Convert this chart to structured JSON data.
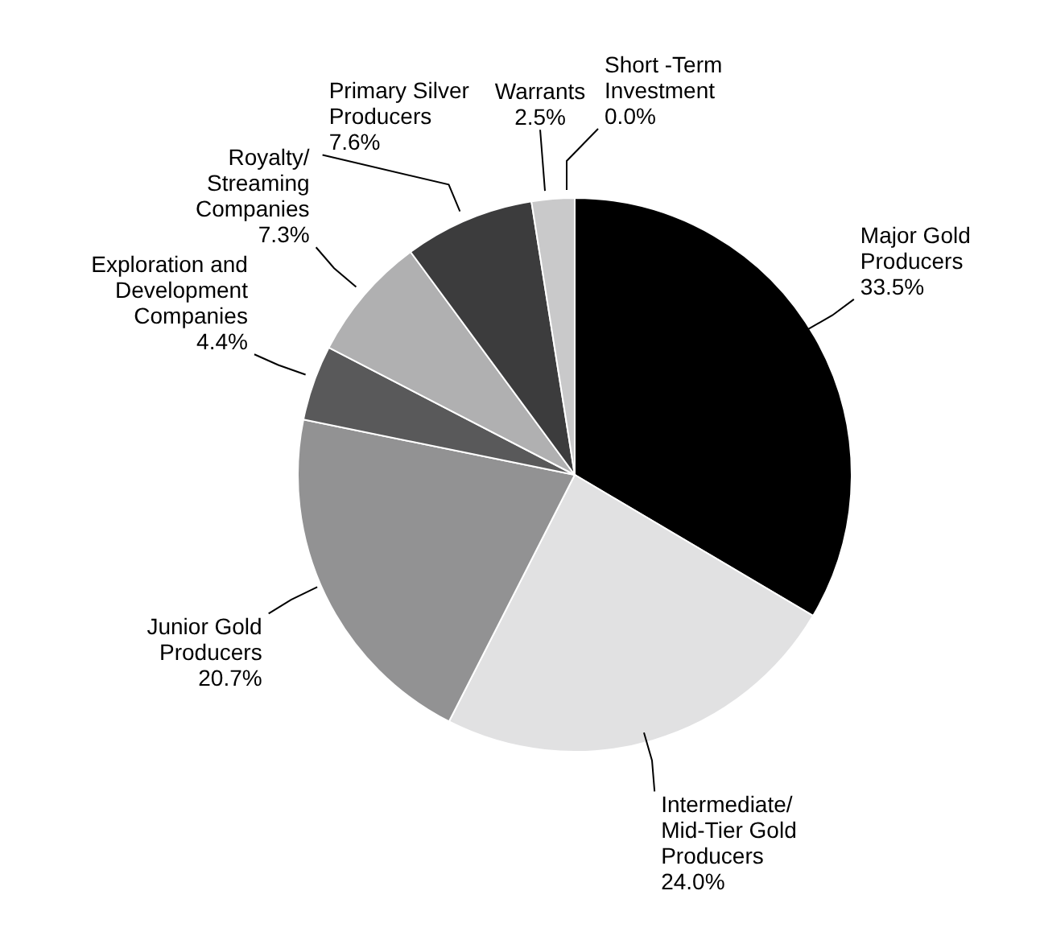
{
  "chart_data": {
    "type": "pie",
    "categories": [
      "Major Gold\nProducers",
      "Intermediate/\nMid-Tier Gold\nProducers",
      "Junior Gold\nProducers",
      "Exploration and\nDevelopment\nCompanies",
      "Royalty/\nStreaming\nCompanies",
      "Primary Silver\nProducers",
      "Warrants",
      "Short -Term\nInvestment"
    ],
    "values": [
      33.5,
      24.0,
      20.7,
      4.4,
      7.3,
      7.6,
      2.5,
      0.0
    ],
    "value_labels": [
      "33.5%",
      "24.0%",
      "20.7%",
      "4.4%",
      "7.3%",
      "7.6%",
      "2.5%",
      "0.0%"
    ],
    "colors": [
      "#000000",
      "#e1e1e2",
      "#929293",
      "#59595a",
      "#b0b0b1",
      "#3c3c3d",
      "#c9c9ca",
      "#000000"
    ],
    "legend": false
  }
}
